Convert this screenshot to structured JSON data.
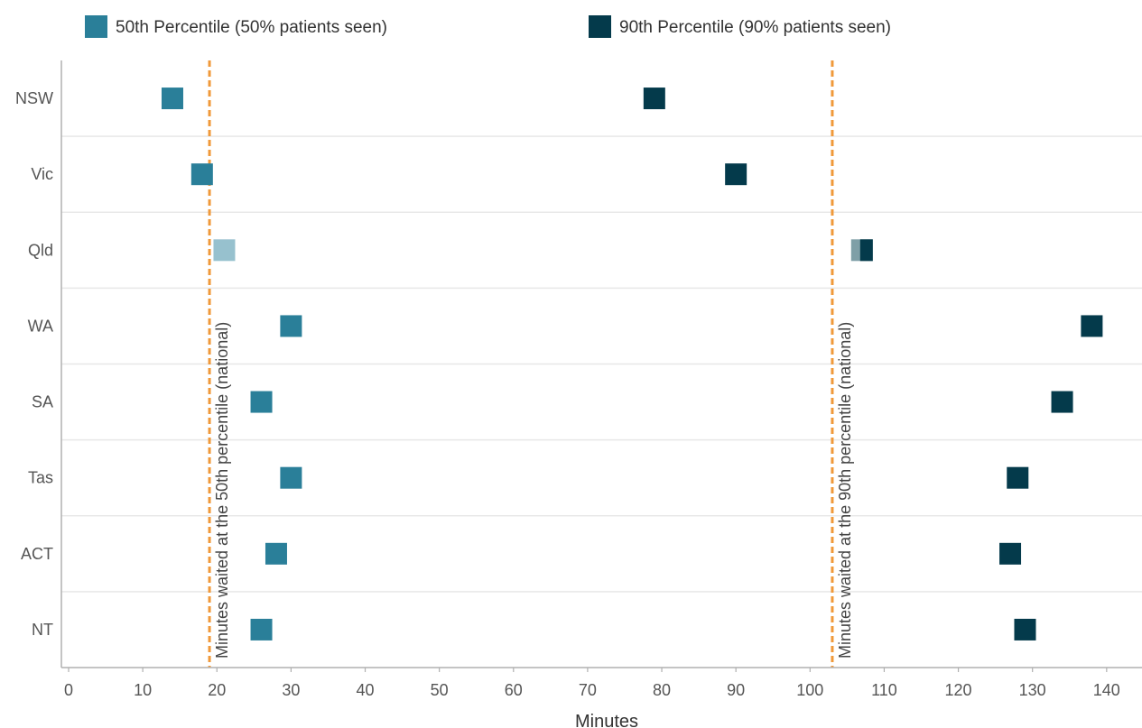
{
  "colors": {
    "p50": "#2a7f99",
    "p90": "#043a4b",
    "p50_alt": "#97c1ce",
    "p90_alt": "#7f9fa7",
    "reference": "#f0993a",
    "grid": "#e8e8e8",
    "axis": "#b0b0b0"
  },
  "chart_data": {
    "type": "scatter",
    "title": "",
    "categories": [
      "NSW",
      "Vic",
      "Qld",
      "WA",
      "SA",
      "Tas",
      "ACT",
      "NT"
    ],
    "xlabel": "Minutes",
    "ylabel": "",
    "xlim": [
      0,
      145
    ],
    "xticks": [
      0,
      10,
      20,
      30,
      40,
      50,
      60,
      70,
      80,
      90,
      100,
      110,
      120,
      130,
      140
    ],
    "grid": "horizontal",
    "legend_position": "top",
    "series": [
      {
        "name": "50th Percentile (50% patients seen)",
        "values": [
          14,
          18,
          21,
          30,
          26,
          30,
          28,
          26
        ],
        "highlight": [
          false,
          false,
          true,
          false,
          false,
          false,
          false,
          false
        ]
      },
      {
        "name": "90th Percentile (90% patients seen)",
        "values": [
          79,
          90,
          107,
          138,
          134,
          128,
          127,
          129
        ],
        "highlight": [
          false,
          false,
          true,
          false,
          false,
          false,
          false,
          false
        ]
      }
    ],
    "reference_lines": [
      {
        "value": 19,
        "label": "Minutes waited at the 50th percentile (national)"
      },
      {
        "value": 103,
        "label": "Minutes waited at the 90th percentile (national)"
      }
    ]
  }
}
